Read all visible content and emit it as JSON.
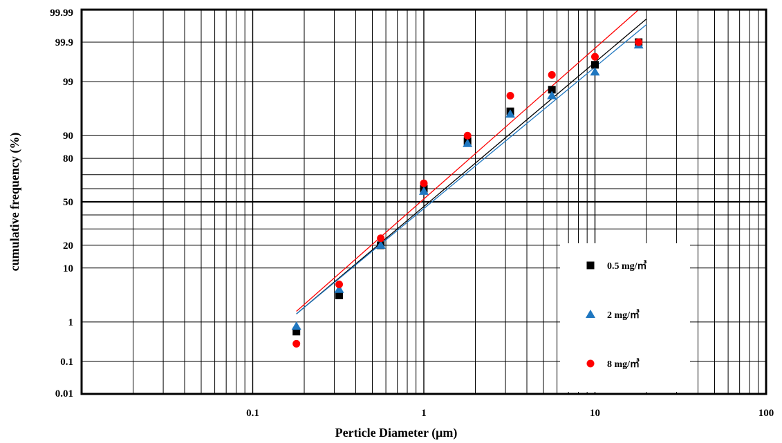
{
  "chart_data": {
    "type": "scatter",
    "title": "",
    "xlabel": "Perticle Diameter (μm)",
    "ylabel": "cumulative frequency (%)",
    "x_scale": "log",
    "y_scale": "probability",
    "xlim": [
      0.01,
      100
    ],
    "ylim": [
      0.01,
      99.99
    ],
    "x_ticks": [
      {
        "value": 0.1,
        "label": "0.1"
      },
      {
        "value": 1,
        "label": "1"
      },
      {
        "value": 10,
        "label": "10"
      },
      {
        "value": 100,
        "label": "100"
      }
    ],
    "y_ticks": [
      {
        "value": 0.01,
        "label": "0.01"
      },
      {
        "value": 0.1,
        "label": "0.1"
      },
      {
        "value": 1,
        "label": "1"
      },
      {
        "value": 10,
        "label": "10"
      },
      {
        "value": 20,
        "label": "20"
      },
      {
        "value": 50,
        "label": "50"
      },
      {
        "value": 80,
        "label": "80"
      },
      {
        "value": 90,
        "label": "90"
      },
      {
        "value": 99,
        "label": "99"
      },
      {
        "value": 99.9,
        "label": "99.9"
      },
      {
        "value": 99.99,
        "label": "99.99"
      }
    ],
    "y_gridlines": [
      0.01,
      0.1,
      1,
      10,
      20,
      30,
      40,
      50,
      60,
      70,
      80,
      90,
      99,
      99.9,
      99.99
    ],
    "grid": true,
    "legend": "right",
    "series": [
      {
        "name": "0.5 mg/㎥",
        "marker": "square",
        "color": "#000000",
        "x": [
          0.18,
          0.32,
          0.56,
          1.0,
          1.8,
          3.2,
          5.6,
          10,
          18
        ],
        "y": [
          0.6,
          3.5,
          20,
          60,
          88,
          96,
          98.5,
          99.6,
          99.9
        ]
      },
      {
        "name": "2 mg/㎥",
        "marker": "triangle",
        "color": "#1f77c0",
        "x": [
          0.18,
          0.32,
          0.56,
          1.0,
          1.8,
          3.2,
          5.6,
          10,
          18
        ],
        "y": [
          0.8,
          4.5,
          20,
          58,
          87,
          95.5,
          98,
          99.4,
          99.88
        ]
      },
      {
        "name": "8 mg/㎥",
        "marker": "circle",
        "color": "#ff0000",
        "x": [
          0.18,
          0.32,
          0.56,
          1.0,
          1.8,
          3.2,
          5.6,
          10,
          18
        ],
        "y": [
          0.3,
          5.5,
          24,
          64,
          90,
          98,
          99.3,
          99.75,
          99.9
        ]
      }
    ],
    "fit_lines": [
      {
        "color": "#000000",
        "x": [
          0.18,
          20
        ],
        "y": [
          1.5,
          99.98
        ]
      },
      {
        "color": "#1f77c0",
        "x": [
          0.18,
          20
        ],
        "y": [
          1.5,
          99.97
        ]
      },
      {
        "color": "#ff0000",
        "x": [
          0.18,
          18
        ],
        "y": [
          1.7,
          99.99
        ]
      }
    ]
  }
}
